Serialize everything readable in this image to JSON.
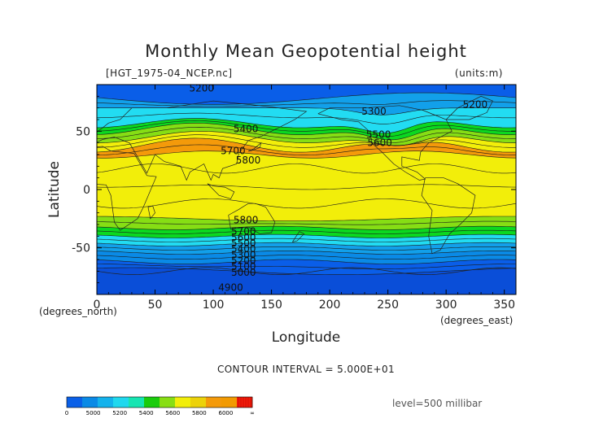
{
  "chart_data": {
    "type": "heatmap",
    "title": "Monthly Mean Geopotential height",
    "source_file": "[HGT_1975-04_NCEP.nc]",
    "units": "(units:m)",
    "xlabel": "Longitude",
    "ylabel": "Latitude",
    "x_unit_label": "(degrees_east)",
    "y_unit_label": "(degrees_north)",
    "xlim": [
      0,
      360
    ],
    "ylim": [
      -90,
      90
    ],
    "x_ticks": [
      0,
      50,
      100,
      150,
      200,
      250,
      300,
      350
    ],
    "y_ticks": [
      -50,
      0,
      50
    ],
    "contour_interval_text": "CONTOUR INTERVAL = 5.000E+01",
    "level_text": "level=500 millibar",
    "contour_labels": [
      {
        "text": "5200",
        "lon": 90,
        "lat": 87
      },
      {
        "text": "5300",
        "lon": 238,
        "lat": 67
      },
      {
        "text": "5200",
        "lon": 325,
        "lat": 73
      },
      {
        "text": "5400",
        "lon": 128,
        "lat": 52
      },
      {
        "text": "5500",
        "lon": 242,
        "lat": 47
      },
      {
        "text": "5600",
        "lon": 243,
        "lat": 40
      },
      {
        "text": "5700",
        "lon": 117,
        "lat": 33
      },
      {
        "text": "5800",
        "lon": 130,
        "lat": 25
      },
      {
        "text": "5800",
        "lon": 128,
        "lat": -26
      },
      {
        "text": "5700",
        "lon": 126,
        "lat": -36
      },
      {
        "text": "5600",
        "lon": 126,
        "lat": -41
      },
      {
        "text": "5500",
        "lon": 126,
        "lat": -46
      },
      {
        "text": "5400",
        "lon": 126,
        "lat": -51
      },
      {
        "text": "5300",
        "lon": 126,
        "lat": -56
      },
      {
        "text": "5200",
        "lon": 126,
        "lat": -61
      },
      {
        "text": "5100",
        "lon": 126,
        "lat": -66
      },
      {
        "text": "5000",
        "lon": 126,
        "lat": -71
      },
      {
        "text": "4900",
        "lon": 115,
        "lat": -84
      }
    ],
    "legend": {
      "colors": [
        "#0a60e8",
        "#0a8ae6",
        "#14b2ec",
        "#20d8ee",
        "#17e5b2",
        "#1acc0c",
        "#88de14",
        "#f2ee0a",
        "#ecd20a",
        "#f49a0a",
        "#f29a02",
        "#f21c0a"
      ],
      "labels": [
        "0",
        "5000",
        "5200",
        "5400",
        "5600",
        "5800",
        "6000",
        "∞"
      ]
    }
  }
}
